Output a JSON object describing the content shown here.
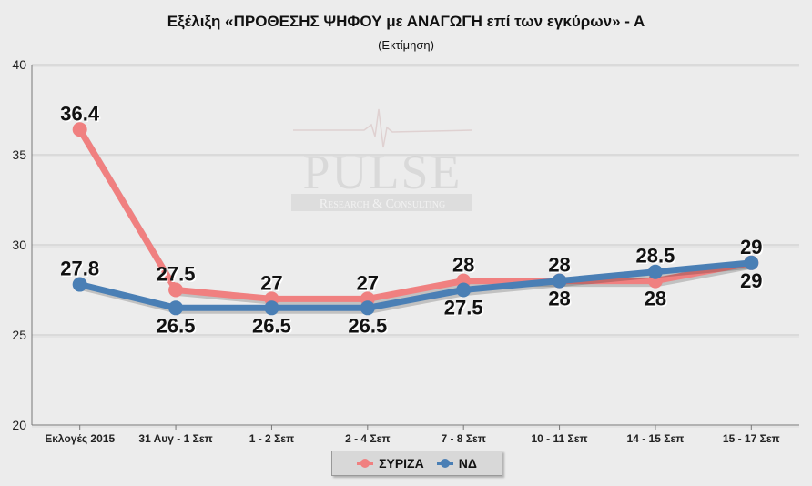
{
  "chart_data": {
    "type": "line",
    "title": "Εξέλιξη «ΠΡΟΘΕΣΗΣ ΨΗΦΟΥ με ΑΝΑΓΩΓΗ επί των εγκύρων» - Α",
    "subtitle": "(Εκτίμηση)",
    "categories": [
      "Εκλογές 2015",
      "31 Αυγ - 1 Σεπ",
      "1 - 2 Σεπ",
      "2 - 4 Σεπ",
      "7 - 8 Σεπ",
      "10 - 11 Σεπ",
      "14 - 15 Σεπ",
      "15 - 17 Σεπ"
    ],
    "ylim": [
      20,
      40
    ],
    "yticks": [
      20,
      25,
      30,
      35,
      40
    ],
    "grid": true,
    "legend_position": "bottom-center",
    "series": [
      {
        "name": "ΣΥΡΙΖΑ",
        "color": "#f08080",
        "values": [
          36.4,
          27.5,
          27,
          27,
          28,
          28,
          28,
          29
        ],
        "labels": [
          "36.4",
          "27.5",
          "27",
          "27",
          "28",
          "28",
          "28",
          "29"
        ],
        "label_pos": [
          "above",
          "above",
          "above",
          "above",
          "above",
          "below",
          "below",
          "below"
        ]
      },
      {
        "name": "ΝΔ",
        "color": "#4a7fb5",
        "values": [
          27.8,
          26.5,
          26.5,
          26.5,
          27.5,
          28,
          28.5,
          29
        ],
        "labels": [
          "27.8",
          "26.5",
          "26.5",
          "26.5",
          "27.5",
          "28",
          "28.5",
          "29"
        ],
        "label_pos": [
          "above",
          "below",
          "below",
          "below",
          "below",
          "above",
          "above",
          "above"
        ]
      }
    ],
    "watermark": {
      "brand": "PULSE",
      "tagline": "Research & Consulting"
    }
  }
}
